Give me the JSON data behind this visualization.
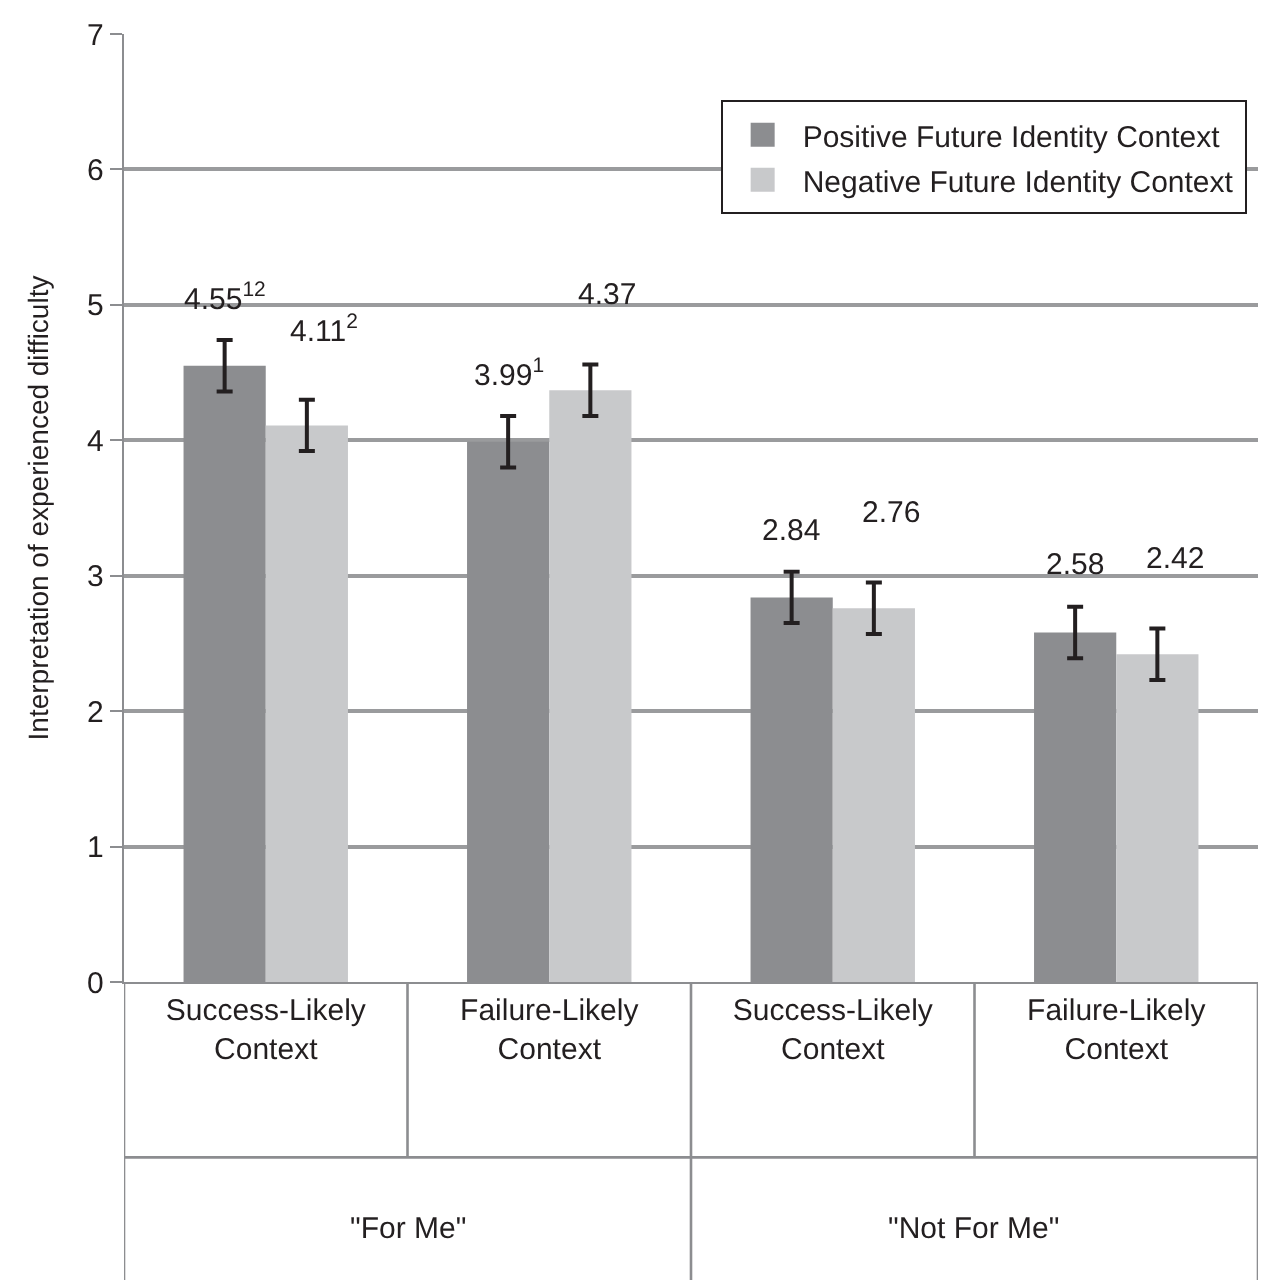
{
  "chart_data": {
    "type": "bar",
    "ylabel": "Interpretation of experienced difficulty",
    "categories": [
      "Success-Likely Context",
      "Failure-Likely Context",
      "Success-Likely Context",
      "Failure-Likely Context"
    ],
    "series": [
      {
        "name": "Positive Future Identity Context",
        "color": "#8c8d90",
        "values": [
          4.55,
          3.99,
          2.84,
          2.58
        ],
        "errors": [
          0.19,
          0.19,
          0.19,
          0.19
        ],
        "value_labels": [
          "4.55$^{12}$",
          "3.99$^{1}$",
          "2.84",
          "2.58"
        ]
      },
      {
        "name": "Negative Future Identity Context",
        "color": "#c8c9cb",
        "values": [
          4.11,
          4.37,
          2.76,
          2.42
        ],
        "errors": [
          0.19,
          0.19,
          0.19,
          0.19
        ],
        "value_labels": [
          "4.11$^{2}$",
          "4.37",
          "2.76",
          "2.42"
        ]
      }
    ],
    "annotations": [
      "\"For Me\"",
      "\"Not For Me\""
    ],
    "ylim": [
      0,
      7
    ],
    "yticks": [
      0,
      1,
      2,
      3,
      4,
      5,
      6,
      7
    ],
    "grid": "y",
    "legend": "top right"
  }
}
